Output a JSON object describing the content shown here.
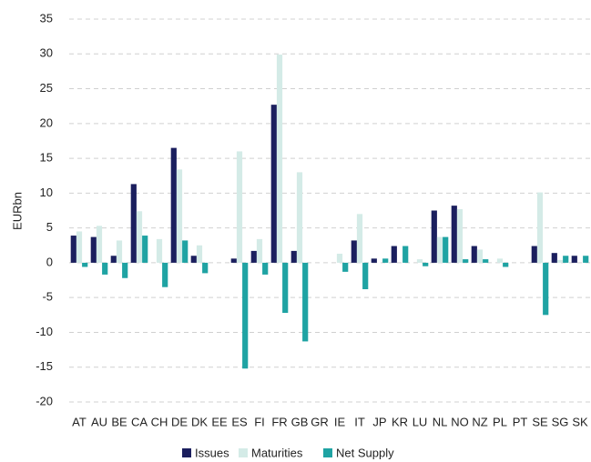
{
  "chart_data": {
    "type": "bar",
    "y_label": "EURbn",
    "categories": [
      "AT",
      "AU",
      "BE",
      "CA",
      "CH",
      "DE",
      "DK",
      "EE",
      "ES",
      "FI",
      "FR",
      "GB",
      "GR",
      "IE",
      "IT",
      "JP",
      "KR",
      "LU",
      "NL",
      "NO",
      "NZ",
      "PL",
      "PT",
      "SE",
      "SG",
      "SK"
    ],
    "series": [
      {
        "name": "Issues",
        "color": "#1b1f5e",
        "values": [
          3.9,
          3.7,
          1.0,
          11.3,
          0,
          16.5,
          1.0,
          0,
          0.6,
          1.7,
          22.7,
          1.7,
          0,
          0,
          3.2,
          0.6,
          2.4,
          0,
          7.5,
          8.2,
          2.4,
          0,
          0,
          2.4,
          1.4,
          1.0
        ]
      },
      {
        "name": "Maturities",
        "color": "#d4ebe7",
        "values": [
          4.5,
          5.3,
          3.2,
          7.4,
          3.4,
          13.4,
          2.5,
          0,
          16.0,
          3.4,
          29.9,
          13.0,
          0,
          1.3,
          7.0,
          0,
          0,
          0.5,
          3.7,
          7.7,
          1.9,
          0.6,
          0,
          10.1,
          0.4,
          0
        ]
      },
      {
        "name": "Net Supply",
        "color": "#1fa3a3",
        "values": [
          -0.6,
          -1.7,
          -2.2,
          3.9,
          -3.5,
          3.2,
          -1.5,
          0,
          -15.2,
          -1.7,
          -7.2,
          -11.3,
          0,
          -1.3,
          -3.8,
          0.6,
          2.4,
          -0.5,
          3.7,
          0.5,
          0.5,
          -0.6,
          0,
          -7.5,
          1.0,
          1.0
        ]
      }
    ],
    "ylim": [
      -20,
      35
    ],
    "yticks": [
      -20,
      -15,
      -10,
      -5,
      0,
      5,
      10,
      15,
      20,
      25,
      30,
      35
    ],
    "grid": true,
    "legend": "bottom"
  }
}
